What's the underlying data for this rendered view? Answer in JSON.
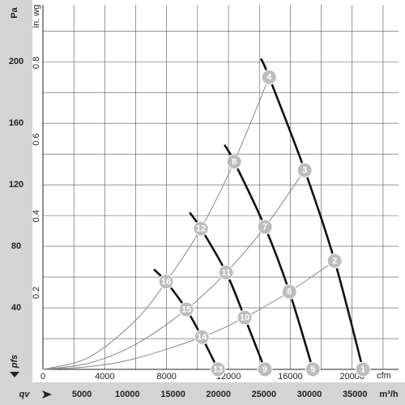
{
  "chart_data": {
    "type": "line",
    "y_label": "Pa",
    "y2_label": "in. wg",
    "x_label": "cfm",
    "x2_label": "m³/h",
    "y_bottom_label": "pfs",
    "x_bottom_label": "qv",
    "xlim": [
      0,
      23000
    ],
    "xticks": [
      0,
      4000,
      8000,
      12000,
      16000,
      20000
    ],
    "xgrid": [
      2000,
      4000,
      6000,
      8000,
      10000,
      12000,
      14000,
      16000,
      18000,
      20000,
      22000
    ],
    "x2lim": [
      0,
      39075
    ],
    "x2ticks": [
      5000,
      10000,
      15000,
      20000,
      25000,
      30000,
      35000
    ],
    "ylim": [
      0,
      237
    ],
    "yticks": [
      40,
      80,
      120,
      160,
      200
    ],
    "ygrid": [
      20,
      40,
      60,
      80,
      100,
      120,
      140,
      160,
      180,
      200,
      220
    ],
    "y2lim": [
      0,
      0.951
    ],
    "y2ticks": [
      0.2,
      0.4,
      0.6,
      0.8
    ],
    "series": [
      {
        "style": "thin",
        "color": "#888888",
        "x": [
          0,
          3000,
          6000,
          7970,
          10220,
          12370,
          14630
        ],
        "values": [
          0,
          8.0,
          32.0,
          57,
          91.6,
          135,
          190
        ]
      },
      {
        "style": "thin",
        "color": "#888888",
        "x": [
          0,
          3000,
          6000,
          9280,
          11850,
          14360,
          16930
        ],
        "values": [
          0,
          4.1,
          16.3,
          39,
          63,
          92.6,
          129.5
        ]
      },
      {
        "style": "thin",
        "color": "#888888",
        "x": [
          0,
          3000,
          6000,
          10280,
          13050,
          15940,
          18870
        ],
        "values": [
          0,
          1.8,
          7.1,
          21,
          33.7,
          50.5,
          70.5
        ]
      },
      {
        "style": "thick",
        "color": "#111111",
        "x": [
          14100,
          14630,
          16930,
          18870,
          20700
        ],
        "values": [
          202,
          190,
          129.5,
          70.5,
          0
        ]
      },
      {
        "style": "thick",
        "color": "#111111",
        "x": [
          11740,
          12370,
          14360,
          15940,
          17460
        ],
        "values": [
          146,
          135,
          92.6,
          50.5,
          0
        ]
      },
      {
        "style": "thick",
        "color": "#111111",
        "x": [
          9490,
          10220,
          11850,
          13050,
          14360
        ],
        "values": [
          102,
          91.6,
          63,
          33.7,
          0
        ]
      },
      {
        "style": "thick",
        "color": "#111111",
        "x": [
          7180,
          7970,
          9280,
          10280,
          11320
        ],
        "values": [
          65,
          57,
          39,
          21,
          0
        ]
      }
    ],
    "marker_color": "#bdbdbd",
    "points": [
      {
        "label": "1",
        "x": 20700,
        "y": 0
      },
      {
        "label": "2",
        "x": 18870,
        "y": 70.5
      },
      {
        "label": "3",
        "x": 16930,
        "y": 129.5
      },
      {
        "label": "4",
        "x": 14630,
        "y": 190
      },
      {
        "label": "5",
        "x": 17460,
        "y": 0
      },
      {
        "label": "6",
        "x": 15940,
        "y": 50.5
      },
      {
        "label": "7",
        "x": 14360,
        "y": 92.6
      },
      {
        "label": "8",
        "x": 12370,
        "y": 135
      },
      {
        "label": "9",
        "x": 14360,
        "y": 0
      },
      {
        "label": "10",
        "x": 13050,
        "y": 33.7
      },
      {
        "label": "11",
        "x": 11850,
        "y": 63
      },
      {
        "label": "12",
        "x": 10220,
        "y": 91.6
      },
      {
        "label": "13",
        "x": 11320,
        "y": 0
      },
      {
        "label": "14",
        "x": 10280,
        "y": 21
      },
      {
        "label": "15",
        "x": 9280,
        "y": 39
      },
      {
        "label": "16",
        "x": 7970,
        "y": 57
      }
    ]
  }
}
